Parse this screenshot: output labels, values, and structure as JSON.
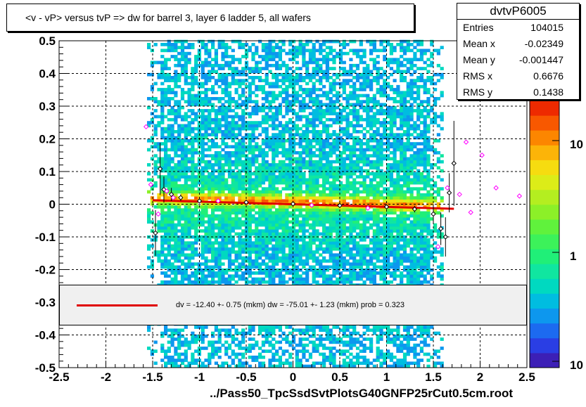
{
  "title": "<v - vP>       versus  tvP =>  dw for barrel 3, layer 6 ladder 5, all wafers",
  "xfile": "../Pass50_TpcSsdSvtPlotsG40GNFP25rCut0.5cm.root",
  "stats": {
    "name": "dvtvP6005",
    "rows": [
      {
        "label": "Entries",
        "value": "104015"
      },
      {
        "label": "Mean x",
        "value": "-0.02349"
      },
      {
        "label": "Mean y",
        "value": "-0.001447"
      },
      {
        "label": "RMS x",
        "value": "0.6676"
      },
      {
        "label": "RMS y",
        "value": "0.1438"
      }
    ]
  },
  "fit_text": "dv =  -12.40 +-  0.75 (mkm) dw =  -75.01 +-  1.23 (mkm) prob = 0.323",
  "colors": {
    "fit_line": "#e00000",
    "fit_box": "#f0f0f0",
    "profile_marker": "#000000",
    "secondary_marker": "#ff00ff"
  },
  "chart_data": {
    "type": "heatmap",
    "xlim": [
      -2.5,
      2.5
    ],
    "ylim": [
      -0.5,
      0.5
    ],
    "x_ticks": [
      "-2.5",
      "-2",
      "-1.5",
      "-1",
      "-0.5",
      "0",
      "0.5",
      "1",
      "1.5",
      "2",
      "2.5"
    ],
    "y_ticks": [
      "-0.5",
      "-0.4",
      "-0.3",
      "-0.2",
      "-0.1",
      "0",
      "0.1",
      "0.2",
      "0.3",
      "0.4",
      "0.5"
    ],
    "z_scale": "log",
    "z_ticks": [
      "1",
      "10",
      "10"
    ],
    "grid": true,
    "fit_line": {
      "x": [
        -1.5,
        1.72
      ],
      "y": [
        0.012,
        -0.014
      ]
    },
    "profile_points": [
      {
        "x": -1.47,
        "y": -0.088,
        "err": 0.07
      },
      {
        "x": -1.42,
        "y": 0.108,
        "err": 0.08
      },
      {
        "x": -1.38,
        "y": 0.045,
        "err": 0.04
      },
      {
        "x": -1.3,
        "y": 0.03,
        "err": 0.02
      },
      {
        "x": -1.2,
        "y": 0.02,
        "err": 0.01
      },
      {
        "x": -1.0,
        "y": 0.01,
        "err": 0.005
      },
      {
        "x": -0.5,
        "y": 0.006,
        "err": 0.003
      },
      {
        "x": 0.0,
        "y": 0.001,
        "err": 0.003
      },
      {
        "x": 0.5,
        "y": -0.004,
        "err": 0.003
      },
      {
        "x": 1.0,
        "y": -0.008,
        "err": 0.005
      },
      {
        "x": 1.3,
        "y": -0.015,
        "err": 0.01
      },
      {
        "x": 1.5,
        "y": -0.03,
        "err": 0.03
      },
      {
        "x": 1.58,
        "y": -0.075,
        "err": 0.05
      },
      {
        "x": 1.63,
        "y": -0.1,
        "err": 0.06
      },
      {
        "x": 1.67,
        "y": 0.035,
        "err": 0.06
      },
      {
        "x": 1.72,
        "y": 0.125,
        "err": 0.13
      }
    ],
    "secondary_points": [
      {
        "x": -1.57,
        "y": 0.237
      },
      {
        "x": -1.52,
        "y": 0.06
      },
      {
        "x": -1.44,
        "y": -0.03
      },
      {
        "x": -1.35,
        "y": 0.04
      },
      {
        "x": -1.28,
        "y": 0.02
      },
      {
        "x": -0.8,
        "y": 0.01
      },
      {
        "x": 0.2,
        "y": -0.003
      },
      {
        "x": 0.8,
        "y": -0.012
      },
      {
        "x": 1.55,
        "y": -0.13
      },
      {
        "x": 1.65,
        "y": 0.05
      },
      {
        "x": 1.78,
        "y": 0.03
      },
      {
        "x": 1.85,
        "y": 0.19
      },
      {
        "x": 1.9,
        "y": -0.025
      },
      {
        "x": 2.02,
        "y": 0.15
      },
      {
        "x": 2.17,
        "y": 0.05
      },
      {
        "x": 2.42,
        "y": 0.025
      }
    ]
  }
}
